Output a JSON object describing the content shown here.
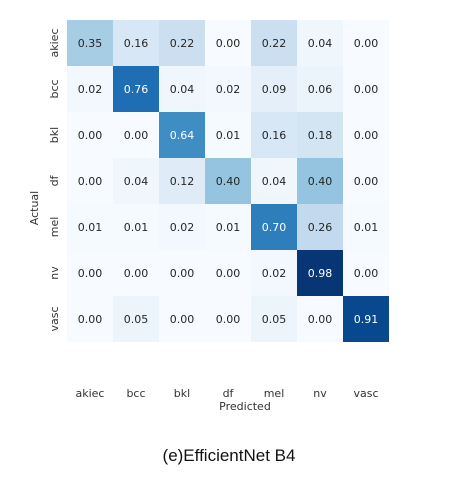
{
  "chart_data": {
    "type": "heatmap",
    "row_labels": [
      "akiec",
      "bcc",
      "bkl",
      "df",
      "mel",
      "nv",
      "vasc"
    ],
    "col_labels": [
      "akiec",
      "bcc",
      "bkl",
      "df",
      "mel",
      "nv",
      "vasc"
    ],
    "xlabel": "Predicted",
    "ylabel": "Actual",
    "values": [
      [
        0.35,
        0.16,
        0.22,
        0.0,
        0.22,
        0.04,
        0.0
      ],
      [
        0.02,
        0.76,
        0.04,
        0.02,
        0.09,
        0.06,
        0.0
      ],
      [
        0.0,
        0.0,
        0.64,
        0.01,
        0.16,
        0.18,
        0.0
      ],
      [
        0.0,
        0.04,
        0.12,
        0.4,
        0.04,
        0.4,
        0.0
      ],
      [
        0.01,
        0.01,
        0.02,
        0.01,
        0.7,
        0.26,
        0.01
      ],
      [
        0.0,
        0.0,
        0.0,
        0.0,
        0.02,
        0.98,
        0.0
      ],
      [
        0.0,
        0.05,
        0.0,
        0.0,
        0.05,
        0.0,
        0.91
      ]
    ],
    "colormap": "Blues",
    "value_range": [
      0,
      1
    ]
  },
  "caption": "(e)EfficientNet B4"
}
